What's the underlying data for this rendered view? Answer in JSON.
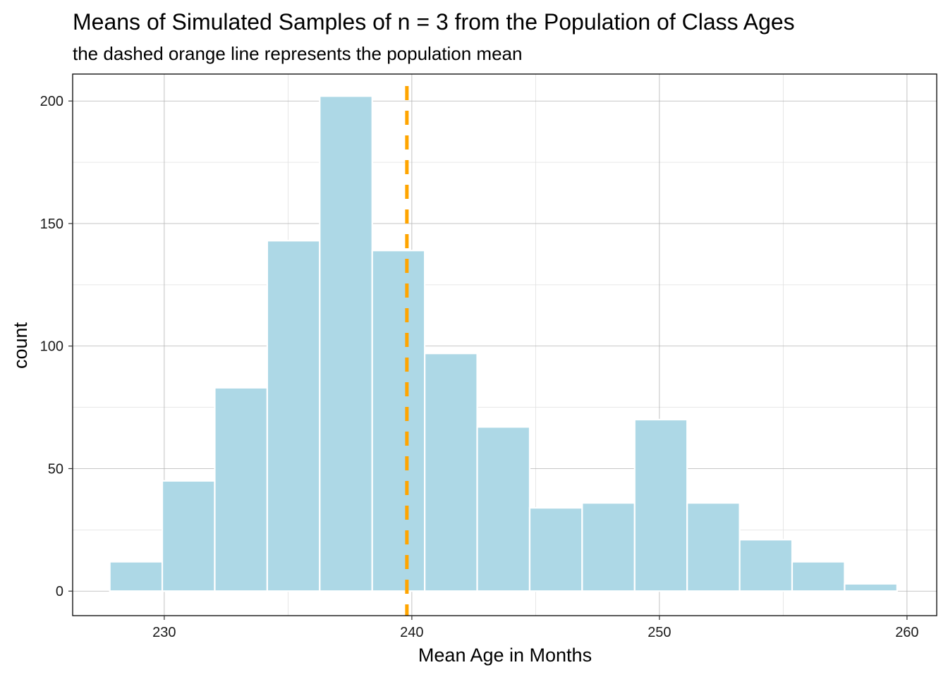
{
  "chart_data": {
    "type": "bar",
    "title": "Means of Simulated Samples of n = 3 from the Population of Class Ages",
    "subtitle": "the dashed orange line represents the population mean",
    "xlabel": "Mean Age in Months",
    "ylabel": "count",
    "xlim": [
      226.3,
      261.2
    ],
    "ylim": [
      -10,
      211
    ],
    "x_ticks": [
      230,
      240,
      250,
      260
    ],
    "y_ticks": [
      0,
      50,
      100,
      150,
      200
    ],
    "grid": true,
    "bin_width": 2.12,
    "bins": [
      {
        "x_start": 227.8,
        "x_end": 229.92,
        "count": 12
      },
      {
        "x_start": 229.92,
        "x_end": 232.04,
        "count": 45
      },
      {
        "x_start": 232.04,
        "x_end": 234.16,
        "count": 83
      },
      {
        "x_start": 234.16,
        "x_end": 236.28,
        "count": 143
      },
      {
        "x_start": 236.28,
        "x_end": 238.4,
        "count": 202
      },
      {
        "x_start": 238.4,
        "x_end": 240.52,
        "count": 139
      },
      {
        "x_start": 240.52,
        "x_end": 242.64,
        "count": 97
      },
      {
        "x_start": 242.64,
        "x_end": 244.76,
        "count": 67
      },
      {
        "x_start": 244.76,
        "x_end": 246.88,
        "count": 34
      },
      {
        "x_start": 246.88,
        "x_end": 249.0,
        "count": 36
      },
      {
        "x_start": 249.0,
        "x_end": 251.12,
        "count": 70
      },
      {
        "x_start": 251.12,
        "x_end": 253.24,
        "count": 36
      },
      {
        "x_start": 253.24,
        "x_end": 255.36,
        "count": 21
      },
      {
        "x_start": 255.36,
        "x_end": 257.48,
        "count": 12
      },
      {
        "x_start": 257.48,
        "x_end": 259.6,
        "count": 3
      }
    ],
    "population_mean": 239.8,
    "colors": {
      "bar_fill": "#ADD8E6",
      "bar_outline": "#FFFFFF",
      "mean_line": "#FFA500",
      "grid_major": "#B3B3B3",
      "grid_minor": "#E0E0E0",
      "panel_border": "#000000"
    }
  }
}
